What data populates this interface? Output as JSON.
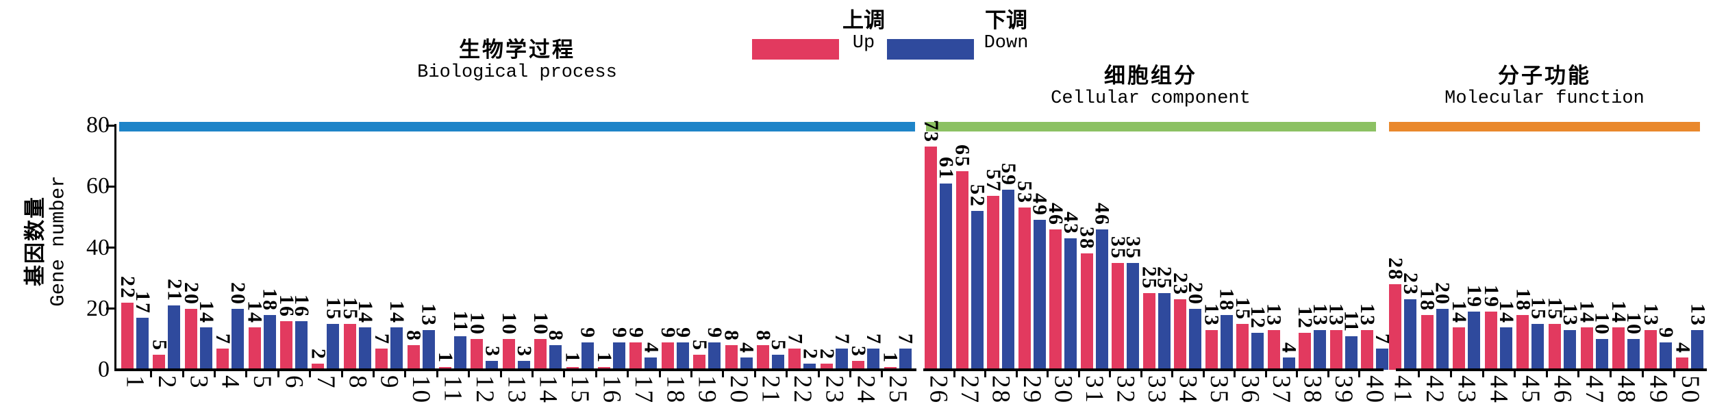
{
  "y_axis_title": {
    "zh": "基因数量",
    "en": "Gene number"
  },
  "legend": {
    "up": {
      "zh": "上调",
      "en": "Up",
      "color": "#E23A5F"
    },
    "down": {
      "zh": "下调",
      "en": "Down",
      "color": "#2F4A9D"
    }
  },
  "chart_data": {
    "type": "bar",
    "title": "",
    "ylabel": "基因数量 Gene number",
    "ylim": [
      0,
      80
    ],
    "y_ticks": [
      0,
      20,
      40,
      60,
      80
    ],
    "grid": false,
    "legend_position": "top-center",
    "categories": [
      1,
      2,
      3,
      4,
      5,
      6,
      7,
      8,
      9,
      10,
      11,
      12,
      13,
      14,
      15,
      16,
      17,
      18,
      19,
      20,
      21,
      22,
      23,
      24,
      25,
      26,
      27,
      28,
      29,
      30,
      31,
      32,
      33,
      34,
      35,
      36,
      37,
      38,
      39,
      40,
      41,
      42,
      43,
      44,
      45,
      46,
      47,
      48,
      49,
      50
    ],
    "series": [
      {
        "name": "上调 Up",
        "color": "#E23A5F",
        "values": [
          22,
          5,
          20,
          7,
          14,
          16,
          2,
          15,
          7,
          8,
          1,
          10,
          10,
          10,
          1,
          1,
          9,
          9,
          5,
          8,
          8,
          7,
          2,
          3,
          1,
          73,
          65,
          57,
          53,
          46,
          38,
          35,
          25,
          23,
          13,
          15,
          13,
          12,
          13,
          13,
          28,
          18,
          14,
          19,
          18,
          15,
          14,
          14,
          13,
          4
        ]
      },
      {
        "name": "下调 Down",
        "color": "#2F4A9D",
        "values": [
          17,
          21,
          14,
          20,
          18,
          16,
          15,
          14,
          14,
          13,
          11,
          3,
          3,
          8,
          9,
          9,
          4,
          9,
          9,
          4,
          5,
          2,
          7,
          7,
          7,
          61,
          52,
          59,
          49,
          43,
          46,
          35,
          25,
          20,
          18,
          12,
          4,
          13,
          11,
          7,
          23,
          20,
          19,
          14,
          15,
          13,
          10,
          10,
          9,
          13
        ]
      }
    ],
    "sections": [
      {
        "label_zh": "生物学过程",
        "label_en": "Biological process",
        "color": "#1E84C8",
        "from": 1,
        "to": 25
      },
      {
        "label_zh": "细胞组分",
        "label_en": "Cellular component",
        "color": "#8CC163",
        "from": 26,
        "to": 40
      },
      {
        "label_zh": "分子功能",
        "label_en": "Molecular function",
        "color": "#E9882C",
        "from": 41,
        "to": 50
      }
    ]
  }
}
